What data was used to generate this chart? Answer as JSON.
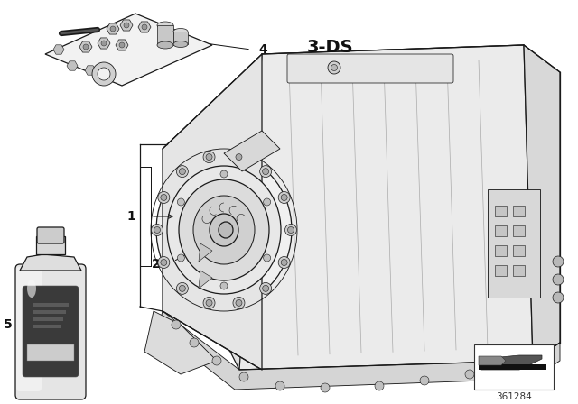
{
  "background_color": "#ffffff",
  "diagram_number": "361284",
  "label_3ds": "3-DS",
  "line_color": "#1a1a1a",
  "gray_light": "#e0e0e0",
  "gray_mid": "#b0b0b0",
  "gray_dark": "#555555"
}
